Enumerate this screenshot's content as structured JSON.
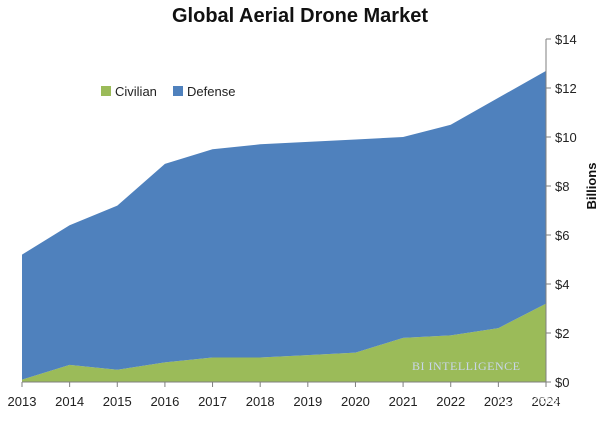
{
  "chart_data": {
    "type": "area",
    "stacked": true,
    "title": "Global Aerial Drone Market",
    "xlabel": "",
    "ylabel": "Billions",
    "categories": [
      "2013",
      "2014",
      "2015",
      "2016",
      "2017",
      "2018",
      "2019",
      "2020",
      "2021",
      "2022",
      "2023",
      "2024"
    ],
    "series": [
      {
        "name": "Civilian",
        "color": "#9bbb59",
        "values": [
          0.1,
          0.7,
          0.5,
          0.8,
          1.0,
          1.0,
          1.1,
          1.2,
          1.8,
          1.9,
          2.2,
          3.2
        ]
      },
      {
        "name": "Defense",
        "color": "#4f81bd",
        "values": [
          5.1,
          5.7,
          6.7,
          8.1,
          8.5,
          8.7,
          8.7,
          8.7,
          8.2,
          8.6,
          9.4,
          9.5
        ]
      }
    ],
    "ylim": [
      0,
      14
    ],
    "yticks": [
      0,
      2,
      4,
      6,
      8,
      10,
      12,
      14
    ],
    "ytick_labels": [
      "$0",
      "$2",
      "$4",
      "$6",
      "$8",
      "$10",
      "$12",
      "$14"
    ],
    "y_axis_side": "right",
    "grid": false,
    "legend_position": "top-left",
    "annotations": [
      {
        "text": "BI INTELLIGENCE",
        "role": "watermark",
        "position": "bottom-right inside plot"
      },
      {
        "text": "Geososo",
        "role": "source watermark",
        "position": "bottom-right corner"
      }
    ]
  }
}
